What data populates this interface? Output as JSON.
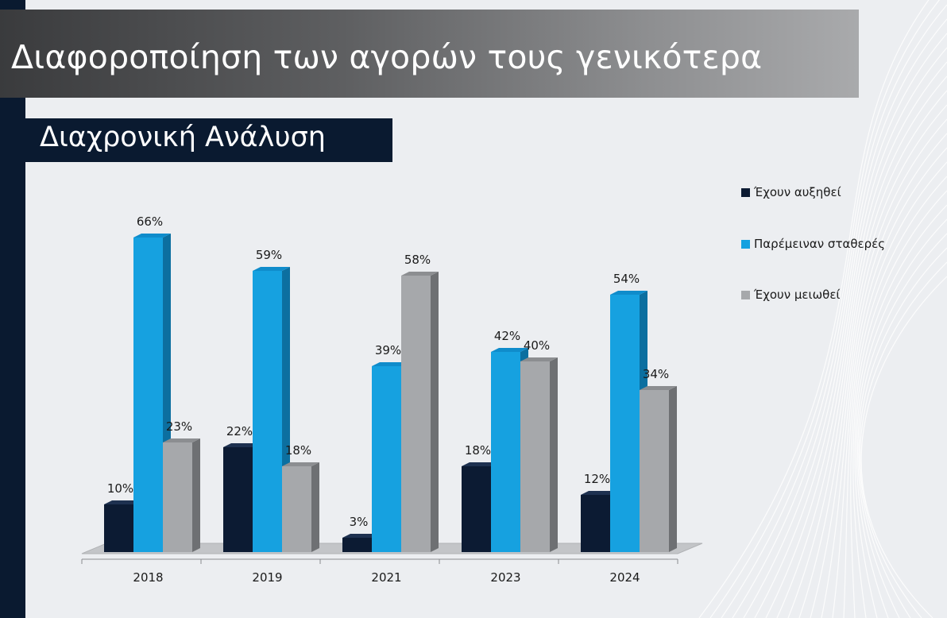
{
  "header": {
    "title": "Διαφοροποίηση των αγορών τους γενικότερα",
    "subtitle": "Διαχρονική Ανάλυση"
  },
  "colors": {
    "background": "#eceef1",
    "dark_navy": "#0a1a30",
    "series": [
      "#0c1b33",
      "#16a1e0",
      "#a6a8ab"
    ],
    "series_side": [
      "#050d1a",
      "#0c6fa0",
      "#6e7073"
    ],
    "series_top": [
      "#1e3150",
      "#0f8ccb",
      "#8c8e91"
    ]
  },
  "chart_data": {
    "type": "bar",
    "categories": [
      "2018",
      "2019",
      "2021",
      "2023",
      "2024"
    ],
    "series": [
      {
        "name": "Έχουν αυξηθεί",
        "values": [
          10,
          22,
          3,
          18,
          12
        ]
      },
      {
        "name": "Παρέμειναν σταθερές",
        "values": [
          66,
          59,
          39,
          42,
          54
        ]
      },
      {
        "name": "Έχουν μειωθεί",
        "values": [
          23,
          18,
          58,
          40,
          34
        ]
      }
    ],
    "value_suffix": "%",
    "legend_position": "right",
    "grid": false,
    "style": "3d-clustered-column",
    "ylim": [
      0,
      70
    ]
  }
}
